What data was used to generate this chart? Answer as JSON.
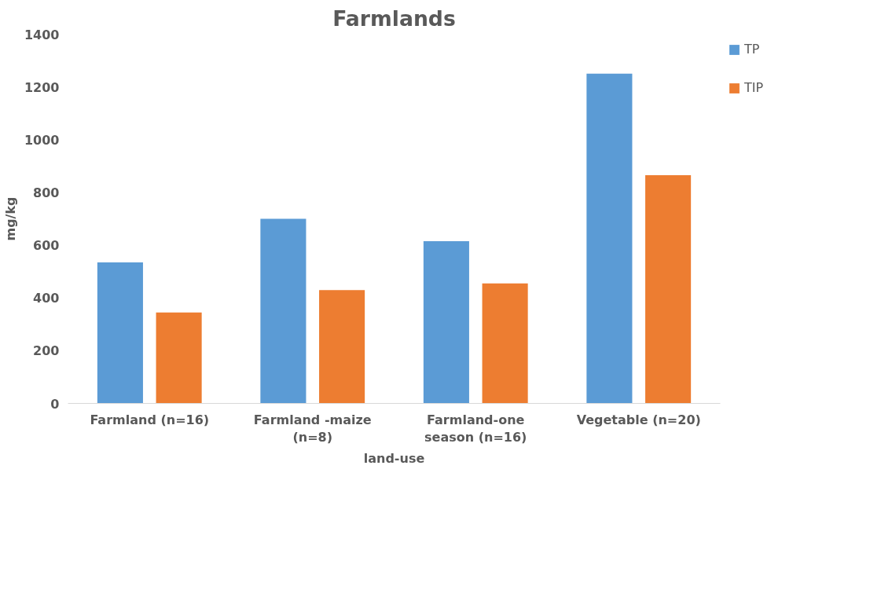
{
  "chart_data": {
    "type": "bar",
    "title": "Farmlands",
    "xlabel": "land-use",
    "ylabel": "mg/kg",
    "categories": [
      "Farmland (n=16)",
      "Farmland -maize (n=8)",
      "Farmland-one season (n=16)",
      "Vegetable (n=20)"
    ],
    "series": [
      {
        "name": "TP",
        "color": "#5b9bd5",
        "values": [
          535,
          700,
          615,
          1250
        ]
      },
      {
        "name": "TIP",
        "color": "#ed7d31",
        "values": [
          345,
          430,
          455,
          865
        ]
      }
    ],
    "ylim": [
      0,
      1400
    ],
    "yticks": [
      0,
      200,
      400,
      600,
      800,
      1000,
      1200,
      1400
    ],
    "grid": false,
    "legend": "top right"
  }
}
